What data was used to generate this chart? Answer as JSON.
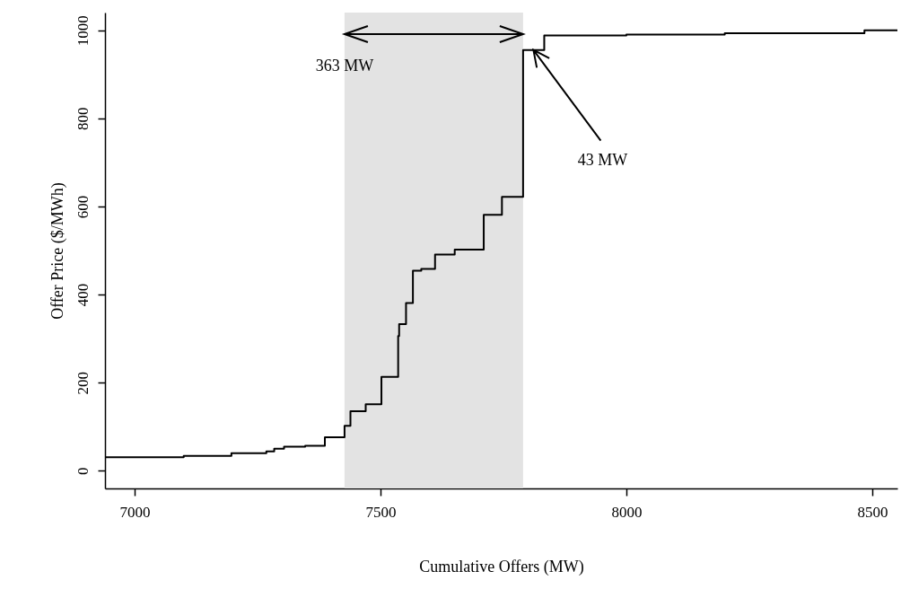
{
  "chart_data": {
    "type": "step",
    "xlabel": "Cumulative Offers (MW)",
    "ylabel": "Offer Price ($/MWh)",
    "x": [
      6940,
      7100,
      7197,
      7268,
      7284,
      7304,
      7347,
      7387,
      7427,
      7439,
      7470,
      7502,
      7536,
      7538,
      7552,
      7566,
      7583,
      7611,
      7651,
      7710,
      7747,
      7790,
      7833,
      8000,
      8200,
      8484,
      8551
    ],
    "series": [
      {
        "color": "#000000",
        "values": [
          31,
          34,
          40,
          44,
          50,
          55,
          57,
          76,
          102,
          135,
          151,
          213,
          306,
          333,
          381,
          454,
          458,
          491,
          502,
          581,
          622,
          955,
          988,
          990,
          993,
          1000,
          1000
        ]
      }
    ],
    "xlim": [
      6940,
      8551
    ],
    "ylim": [
      -40,
      1040
    ],
    "xticks": [
      7000,
      7500,
      8000,
      8500
    ],
    "yticks": [
      0,
      200,
      400,
      600,
      800,
      1000
    ],
    "bands": [
      {
        "axis": "x",
        "from": 7427,
        "to": 7790,
        "color": "#e3e3e3"
      }
    ],
    "annotations": [
      "363 MW",
      {
        "text": "43 MW",
        "x": 7811,
        "y": 955
      }
    ],
    "grid": false,
    "marker": "none",
    "line_style": "solid"
  }
}
